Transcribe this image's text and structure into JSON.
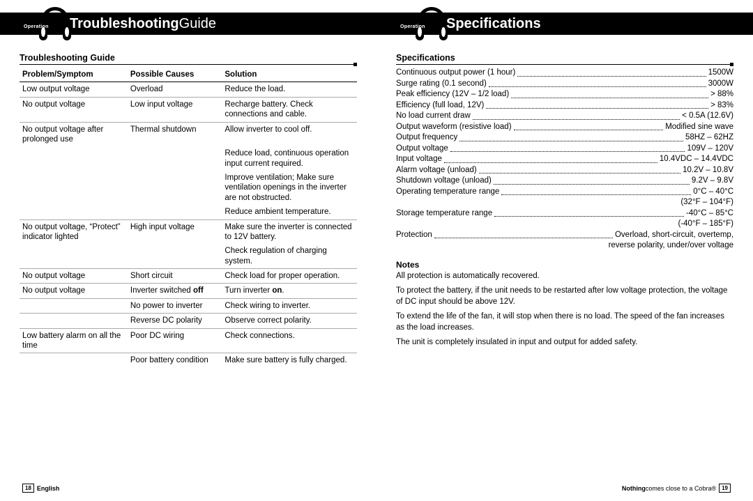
{
  "left": {
    "header_bold": "Troubleshooting",
    "header_rest": " Guide",
    "op_label": "Operation",
    "section_title": "Troubleshooting Guide",
    "th1": "Problem/Symptom",
    "th2": "Possible Causes",
    "th3": "Solution",
    "footer_page": "18",
    "footer_lang": "English"
  },
  "rows": [
    {
      "p": "Low output voltage",
      "c": "Overload",
      "s": "Reduce the load.",
      "rule": true
    },
    {
      "p": "No output voltage",
      "c": "Low input voltage",
      "s": "Recharge battery. Check connections and cable.",
      "rule": true
    },
    {
      "p": "No output voltage after prolonged use",
      "c": "Thermal shutdown",
      "s": "Allow inverter to cool off.",
      "rule": false
    },
    {
      "p": "",
      "c": "",
      "s": "Reduce load, continuous operation input current required.",
      "rule": false
    },
    {
      "p": "",
      "c": "",
      "s": "Improve ventilation; Make sure ventilation openings in the inverter are not obstructed.",
      "rule": false
    },
    {
      "p": "",
      "c": "",
      "s": "Reduce ambient temperature.",
      "rule": true
    },
    {
      "p": "No output voltage, “Protect” indicator lighted",
      "c": "High input voltage",
      "s": "Make sure the inverter is connected to 12V battery.",
      "rule": false
    },
    {
      "p": "",
      "c": "",
      "s": "Check regulation of charging system.",
      "rule": true
    },
    {
      "p": "No output voltage",
      "c": "Short circuit",
      "s": "Check load for proper operation.",
      "rule": true
    },
    {
      "p": "No output voltage",
      "c": "Inverter switched <b>off</b>",
      "s": "Turn inverter <b>on</b>.",
      "rule": true,
      "html": true
    },
    {
      "p": "",
      "c": "No power to inverter",
      "s": "Check wiring to inverter.",
      "rule": true
    },
    {
      "p": "",
      "c": "Reverse DC polarity",
      "s": "Observe correct polarity.",
      "rule": true
    },
    {
      "p": "Low battery alarm on all the time",
      "c": "Poor DC wiring",
      "s": "Check connections.",
      "rule": true
    },
    {
      "p": "",
      "c": "Poor battery condition",
      "s": "Make sure battery is fully charged.",
      "rule": false
    }
  ],
  "right": {
    "header_bold": "Specifications",
    "op_label": "Operation",
    "section_title": "Specifications",
    "notes_title": "Notes",
    "footer_tagline_bold": "Nothing",
    "footer_tagline_rest": " comes close to a Cobra®",
    "footer_page": "19"
  },
  "specs": [
    {
      "l": "Continuous output power (1 hour)",
      "v": "1500W"
    },
    {
      "l": "Surge rating (0.1 second)",
      "v": "3000W"
    },
    {
      "l": "Peak efficiency (12V – 1/2 load)",
      "v": "> 88%"
    },
    {
      "l": "Efficiency (full load, 12V)",
      "v": "> 83%"
    },
    {
      "l": "No load current draw",
      "v": "< 0.5A (12.6V)"
    },
    {
      "l": "Output waveform (resistive load)",
      "v": "Modified sine wave"
    },
    {
      "l": "Output frequency",
      "v": "58HZ – 62HZ"
    },
    {
      "l": "Output voltage",
      "v": "109V – 120V"
    },
    {
      "l": "Input voltage",
      "v": "10.4VDC – 14.4VDC"
    },
    {
      "l": "Alarm voltage (unload)",
      "v": "10.2V – 10.8V"
    },
    {
      "l": "Shutdown voltage (unload)",
      "v": "9.2V – 9.8V"
    },
    {
      "l": "Operating temperature range",
      "v": "0°C – 40°C",
      "cont": "(32°F – 104°F)"
    },
    {
      "l": "Storage temperature range",
      "v": "-40°C – 85°C",
      "cont": "(-40°F – 185°F)"
    },
    {
      "l": "Protection",
      "v": "Overload, short-circuit, overtemp,",
      "cont": "reverse polarity, under/over voltage"
    }
  ],
  "notes": [
    "All protection is automatically recovered.",
    "To protect the battery, if the unit needs to be restarted after low voltage protection, the voltage of DC input should be above 12V.",
    "To extend the life of the fan, it will stop when there is no load. The speed of the fan increases as the load increases.",
    "The unit is completely insulated in input and output for added safety."
  ],
  "colors": {
    "black": "#000000",
    "white": "#ffffff",
    "rule": "#aaaaaa"
  }
}
